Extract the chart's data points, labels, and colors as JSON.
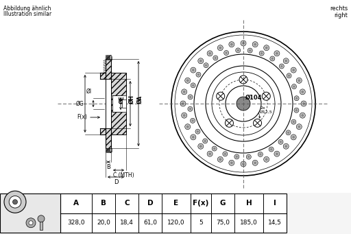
{
  "bg_color": "#ffffff",
  "table_headers": [
    "A",
    "B",
    "C",
    "D",
    "E",
    "F(x)",
    "G",
    "H",
    "I"
  ],
  "table_values": [
    "328,0",
    "20,0",
    "18,4",
    "61,0",
    "120,0",
    "5",
    "75,0",
    "185,0",
    "14,5"
  ],
  "top_left_text1": "Abbildung ähnlich",
  "top_left_text2": "Illustration similar",
  "top_right_text1": "rechts",
  "top_right_text2": "right",
  "lc": "#000000",
  "gray": "#aaaaaa",
  "hatch_gray": "#888888",
  "bg": "#f5f5f5"
}
